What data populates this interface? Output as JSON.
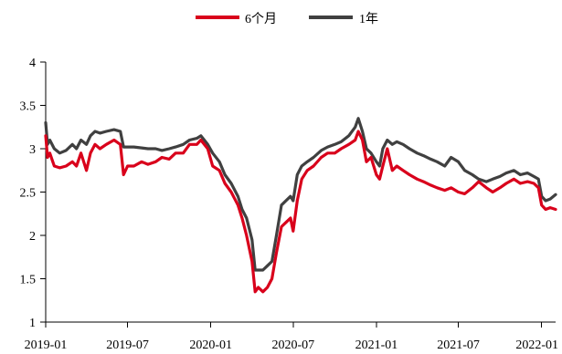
{
  "chart_data": {
    "type": "line",
    "title": "",
    "xlabel": "",
    "ylabel": "",
    "legend_position": "top-center",
    "grid": false,
    "ylim": [
      1,
      4
    ],
    "y_ticks": [
      "1",
      "1.5",
      "2",
      "2.5",
      "3",
      "3.5",
      "4"
    ],
    "x_range": [
      "2019-01-01",
      "2022-02-01"
    ],
    "x_ticks": [
      {
        "label": "2019-01",
        "date": "2019-01-01"
      },
      {
        "label": "2019-07",
        "date": "2019-07-01"
      },
      {
        "label": "2020-01",
        "date": "2020-01-01"
      },
      {
        "label": "2020-07",
        "date": "2020-07-01"
      },
      {
        "label": "2021-01",
        "date": "2021-01-01"
      },
      {
        "label": "2021-07",
        "date": "2021-07-01"
      },
      {
        "label": "2022-01",
        "date": "2022-01-01"
      }
    ],
    "series": [
      {
        "name": "6个月",
        "color": "#d9001b",
        "points": [
          [
            "2019-01-01",
            3.15
          ],
          [
            "2019-01-05",
            2.9
          ],
          [
            "2019-01-10",
            2.95
          ],
          [
            "2019-01-20",
            2.8
          ],
          [
            "2019-02-01",
            2.78
          ],
          [
            "2019-02-15",
            2.8
          ],
          [
            "2019-03-01",
            2.85
          ],
          [
            "2019-03-10",
            2.8
          ],
          [
            "2019-03-20",
            2.95
          ],
          [
            "2019-04-01",
            2.75
          ],
          [
            "2019-04-10",
            2.95
          ],
          [
            "2019-04-20",
            3.05
          ],
          [
            "2019-05-01",
            3.0
          ],
          [
            "2019-05-15",
            3.05
          ],
          [
            "2019-06-01",
            3.1
          ],
          [
            "2019-06-15",
            3.05
          ],
          [
            "2019-06-22",
            2.7
          ],
          [
            "2019-07-01",
            2.8
          ],
          [
            "2019-07-15",
            2.8
          ],
          [
            "2019-08-01",
            2.85
          ],
          [
            "2019-08-15",
            2.82
          ],
          [
            "2019-09-01",
            2.85
          ],
          [
            "2019-09-15",
            2.9
          ],
          [
            "2019-10-01",
            2.88
          ],
          [
            "2019-10-15",
            2.95
          ],
          [
            "2019-11-01",
            2.95
          ],
          [
            "2019-11-15",
            3.05
          ],
          [
            "2019-12-01",
            3.05
          ],
          [
            "2019-12-10",
            3.1
          ],
          [
            "2019-12-25",
            3.0
          ],
          [
            "2020-01-05",
            2.8
          ],
          [
            "2020-01-20",
            2.75
          ],
          [
            "2020-02-01",
            2.6
          ],
          [
            "2020-02-15",
            2.5
          ],
          [
            "2020-03-01",
            2.35
          ],
          [
            "2020-03-10",
            2.2
          ],
          [
            "2020-03-20",
            2.0
          ],
          [
            "2020-04-01",
            1.7
          ],
          [
            "2020-04-08",
            1.35
          ],
          [
            "2020-04-15",
            1.4
          ],
          [
            "2020-04-25",
            1.35
          ],
          [
            "2020-05-05",
            1.4
          ],
          [
            "2020-05-15",
            1.5
          ],
          [
            "2020-05-25",
            1.8
          ],
          [
            "2020-06-05",
            2.1
          ],
          [
            "2020-06-15",
            2.15
          ],
          [
            "2020-06-25",
            2.2
          ],
          [
            "2020-07-01",
            2.05
          ],
          [
            "2020-07-10",
            2.4
          ],
          [
            "2020-07-20",
            2.65
          ],
          [
            "2020-08-01",
            2.75
          ],
          [
            "2020-08-15",
            2.8
          ],
          [
            "2020-09-01",
            2.9
          ],
          [
            "2020-09-15",
            2.95
          ],
          [
            "2020-10-01",
            2.95
          ],
          [
            "2020-10-15",
            3.0
          ],
          [
            "2020-11-01",
            3.05
          ],
          [
            "2020-11-15",
            3.1
          ],
          [
            "2020-11-22",
            3.2
          ],
          [
            "2020-12-01",
            3.1
          ],
          [
            "2020-12-10",
            2.85
          ],
          [
            "2020-12-20",
            2.9
          ],
          [
            "2021-01-01",
            2.7
          ],
          [
            "2021-01-08",
            2.65
          ],
          [
            "2021-01-15",
            2.8
          ],
          [
            "2021-01-25",
            3.0
          ],
          [
            "2021-02-05",
            2.75
          ],
          [
            "2021-02-15",
            2.8
          ],
          [
            "2021-03-01",
            2.75
          ],
          [
            "2021-03-15",
            2.7
          ],
          [
            "2021-04-01",
            2.65
          ],
          [
            "2021-04-15",
            2.62
          ],
          [
            "2021-05-01",
            2.58
          ],
          [
            "2021-05-15",
            2.55
          ],
          [
            "2021-06-01",
            2.52
          ],
          [
            "2021-06-15",
            2.55
          ],
          [
            "2021-07-01",
            2.5
          ],
          [
            "2021-07-15",
            2.48
          ],
          [
            "2021-08-01",
            2.55
          ],
          [
            "2021-08-15",
            2.62
          ],
          [
            "2021-09-01",
            2.55
          ],
          [
            "2021-09-15",
            2.5
          ],
          [
            "2021-10-01",
            2.55
          ],
          [
            "2021-10-15",
            2.6
          ],
          [
            "2021-11-01",
            2.65
          ],
          [
            "2021-11-15",
            2.6
          ],
          [
            "2021-12-01",
            2.62
          ],
          [
            "2021-12-15",
            2.6
          ],
          [
            "2021-12-25",
            2.55
          ],
          [
            "2022-01-01",
            2.35
          ],
          [
            "2022-01-10",
            2.3
          ],
          [
            "2022-01-20",
            2.32
          ],
          [
            "2022-02-01",
            2.3
          ]
        ]
      },
      {
        "name": "1年",
        "color": "#404040",
        "points": [
          [
            "2019-01-01",
            3.3
          ],
          [
            "2019-01-05",
            3.05
          ],
          [
            "2019-01-10",
            3.1
          ],
          [
            "2019-01-20",
            3.0
          ],
          [
            "2019-02-01",
            2.95
          ],
          [
            "2019-02-15",
            2.98
          ],
          [
            "2019-03-01",
            3.05
          ],
          [
            "2019-03-10",
            3.0
          ],
          [
            "2019-03-20",
            3.1
          ],
          [
            "2019-04-01",
            3.05
          ],
          [
            "2019-04-10",
            3.15
          ],
          [
            "2019-04-20",
            3.2
          ],
          [
            "2019-05-01",
            3.18
          ],
          [
            "2019-05-15",
            3.2
          ],
          [
            "2019-06-01",
            3.22
          ],
          [
            "2019-06-15",
            3.2
          ],
          [
            "2019-06-22",
            3.02
          ],
          [
            "2019-07-01",
            3.02
          ],
          [
            "2019-07-15",
            3.02
          ],
          [
            "2019-08-01",
            3.01
          ],
          [
            "2019-08-15",
            3.0
          ],
          [
            "2019-09-01",
            3.0
          ],
          [
            "2019-09-15",
            2.98
          ],
          [
            "2019-10-01",
            3.0
          ],
          [
            "2019-10-15",
            3.02
          ],
          [
            "2019-11-01",
            3.05
          ],
          [
            "2019-11-15",
            3.1
          ],
          [
            "2019-12-01",
            3.12
          ],
          [
            "2019-12-10",
            3.15
          ],
          [
            "2019-12-25",
            3.05
          ],
          [
            "2020-01-05",
            2.95
          ],
          [
            "2020-01-20",
            2.85
          ],
          [
            "2020-02-01",
            2.7
          ],
          [
            "2020-02-15",
            2.6
          ],
          [
            "2020-03-01",
            2.45
          ],
          [
            "2020-03-10",
            2.3
          ],
          [
            "2020-03-20",
            2.2
          ],
          [
            "2020-04-01",
            1.95
          ],
          [
            "2020-04-08",
            1.6
          ],
          [
            "2020-04-15",
            1.6
          ],
          [
            "2020-04-25",
            1.6
          ],
          [
            "2020-05-05",
            1.65
          ],
          [
            "2020-05-15",
            1.7
          ],
          [
            "2020-05-25",
            2.0
          ],
          [
            "2020-06-05",
            2.35
          ],
          [
            "2020-06-15",
            2.4
          ],
          [
            "2020-06-25",
            2.45
          ],
          [
            "2020-07-01",
            2.4
          ],
          [
            "2020-07-10",
            2.7
          ],
          [
            "2020-07-20",
            2.8
          ],
          [
            "2020-08-01",
            2.85
          ],
          [
            "2020-08-15",
            2.9
          ],
          [
            "2020-09-01",
            2.98
          ],
          [
            "2020-09-15",
            3.02
          ],
          [
            "2020-10-01",
            3.05
          ],
          [
            "2020-10-15",
            3.08
          ],
          [
            "2020-11-01",
            3.15
          ],
          [
            "2020-11-15",
            3.25
          ],
          [
            "2020-11-22",
            3.35
          ],
          [
            "2020-12-01",
            3.2
          ],
          [
            "2020-12-10",
            3.0
          ],
          [
            "2020-12-20",
            2.95
          ],
          [
            "2021-01-01",
            2.85
          ],
          [
            "2021-01-08",
            2.8
          ],
          [
            "2021-01-15",
            3.0
          ],
          [
            "2021-01-25",
            3.1
          ],
          [
            "2021-02-05",
            3.05
          ],
          [
            "2021-02-15",
            3.08
          ],
          [
            "2021-03-01",
            3.05
          ],
          [
            "2021-03-15",
            3.0
          ],
          [
            "2021-04-01",
            2.95
          ],
          [
            "2021-04-15",
            2.92
          ],
          [
            "2021-05-01",
            2.88
          ],
          [
            "2021-05-15",
            2.85
          ],
          [
            "2021-06-01",
            2.8
          ],
          [
            "2021-06-15",
            2.9
          ],
          [
            "2021-07-01",
            2.85
          ],
          [
            "2021-07-15",
            2.75
          ],
          [
            "2021-08-01",
            2.7
          ],
          [
            "2021-08-15",
            2.65
          ],
          [
            "2021-09-01",
            2.62
          ],
          [
            "2021-09-15",
            2.65
          ],
          [
            "2021-10-01",
            2.68
          ],
          [
            "2021-10-15",
            2.72
          ],
          [
            "2021-11-01",
            2.75
          ],
          [
            "2021-11-15",
            2.7
          ],
          [
            "2021-12-01",
            2.72
          ],
          [
            "2021-12-15",
            2.68
          ],
          [
            "2021-12-25",
            2.65
          ],
          [
            "2022-01-01",
            2.45
          ],
          [
            "2022-01-10",
            2.4
          ],
          [
            "2022-01-20",
            2.42
          ],
          [
            "2022-02-01",
            2.47
          ]
        ]
      }
    ]
  }
}
